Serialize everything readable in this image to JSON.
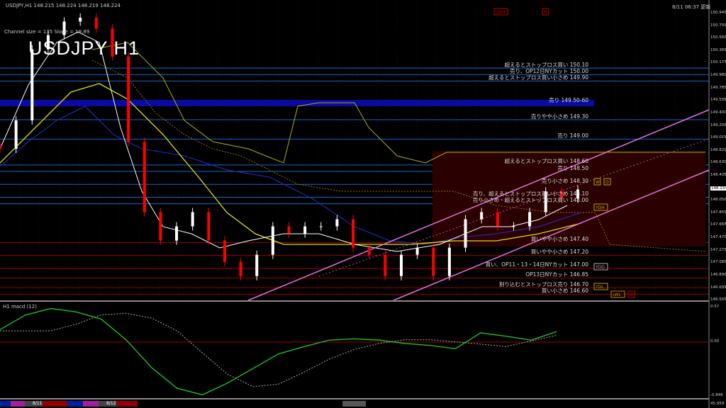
{
  "header": {
    "symbol_info": "USDJPY,H1  148.215 148.224 148.219 148.224",
    "channel_info": "Channel size = 135  Slope = 19.89",
    "big_title": "USDJPY H1",
    "timestamp": "8/11 06:37 更新"
  },
  "colors": {
    "background": "#000000",
    "bull": "#ffffff",
    "bear": "#ff0000",
    "resistance_line": "#1e64c8",
    "support_line": "#a00000",
    "channel": "#e070e0",
    "macd_main": "#22cc22",
    "macd_down": "#e080c0"
  },
  "levels": [
    {
      "text": "超えるとストップロス買い 150.10",
      "price": 150.1,
      "side": "above"
    },
    {
      "text": "売り、OP12日NYカット 150.00",
      "price": 150.0,
      "side": "above"
    },
    {
      "text": "超えるとストップロス買い小さめ 149.90",
      "price": 149.9,
      "side": "above"
    },
    {
      "text": "売り 149.50-60",
      "price": 149.55,
      "side": "band"
    },
    {
      "text": "売りやや小さめ 149.30",
      "price": 149.3,
      "side": "above"
    },
    {
      "text": "売り 149.00",
      "price": 149.0,
      "side": "above"
    },
    {
      "text": "超えるとストップロス買い 148.60",
      "price": 148.6,
      "side": "above"
    },
    {
      "text": "売り 148.50",
      "price": 148.5,
      "side": "above"
    },
    {
      "text": "売り小さめ 148.30",
      "price": 148.3,
      "side": "above"
    },
    {
      "text": "売り、超えるとストップロス買い小さめ 148.10",
      "price": 148.1,
      "side": "above"
    },
    {
      "text": "売り小さめ・超えるとストップロス買い 148.00",
      "price": 148.0,
      "side": "above"
    },
    {
      "text": "買いやや小さめ 147.40",
      "price": 147.4,
      "side": "below"
    },
    {
      "text": "買いやや小さめ 147.20",
      "price": 147.2,
      "side": "below"
    },
    {
      "text": "買い、OP11・13・14日NYカット 147.00",
      "price": 147.0,
      "side": "below"
    },
    {
      "text": "OP13日NYカット 146.85",
      "price": 146.85,
      "side": "below"
    },
    {
      "text": "割り込むとストップロス売り 146.70",
      "price": 146.7,
      "side": "below"
    },
    {
      "text": "買い小さめ 146.60",
      "price": 146.6,
      "side": "below"
    }
  ],
  "markers": [
    "LWH",
    "M",
    "W",
    "D",
    "YDH",
    "YDO",
    "YDL",
    "LWL",
    "M"
  ],
  "chart_data": {
    "type": "candlestick",
    "title": "USDJPY H1",
    "ylim": [
      146.505,
      150.945
    ],
    "y_ticks": [
      "150.945",
      "150.750",
      "150.560",
      "150.365",
      "150.175",
      "149.980",
      "149.785",
      "149.595",
      "149.400",
      "149.205",
      "149.015",
      "148.820",
      "148.630",
      "148.435",
      "148.224",
      "148.050",
      "147.855",
      "147.665",
      "147.470",
      "147.275",
      "147.085",
      "146.890",
      "146.695",
      "146.505"
    ],
    "current_price": "148.224",
    "x_ticks": [
      "8/11",
      "8/12"
    ],
    "closes": [
      148.85,
      149.29,
      150.39,
      150.61,
      150.82,
      150.88,
      150.71,
      150.28,
      148.96,
      147.87,
      147.43,
      147.65,
      147.87,
      147.43,
      147.1,
      146.88,
      147.21,
      147.65,
      147.54,
      147.65,
      147.65,
      147.76,
      147.32,
      147.21,
      146.88,
      147.21,
      147.32,
      146.88,
      147.32,
      147.76,
      147.87,
      147.65,
      147.65,
      147.87,
      148.19,
      148.08,
      148.22
    ],
    "indicator": {
      "label": "H1  macd (12)",
      "ylim": [
        -0.846,
        0.57
      ],
      "y_ticks": [
        "0.57",
        "0.00",
        "-0.846"
      ],
      "extra_tick": "45.959",
      "values": [
        0.19,
        0.41,
        0.51,
        0.46,
        0.35,
        0.03,
        -0.39,
        -0.7,
        -0.8,
        -0.62,
        -0.4,
        -0.18,
        -0.07,
        0.03,
        0.05,
        0.03,
        -0.02,
        -0.05,
        -0.1,
        0.14,
        0.09,
        0.03,
        0.16
      ]
    }
  }
}
